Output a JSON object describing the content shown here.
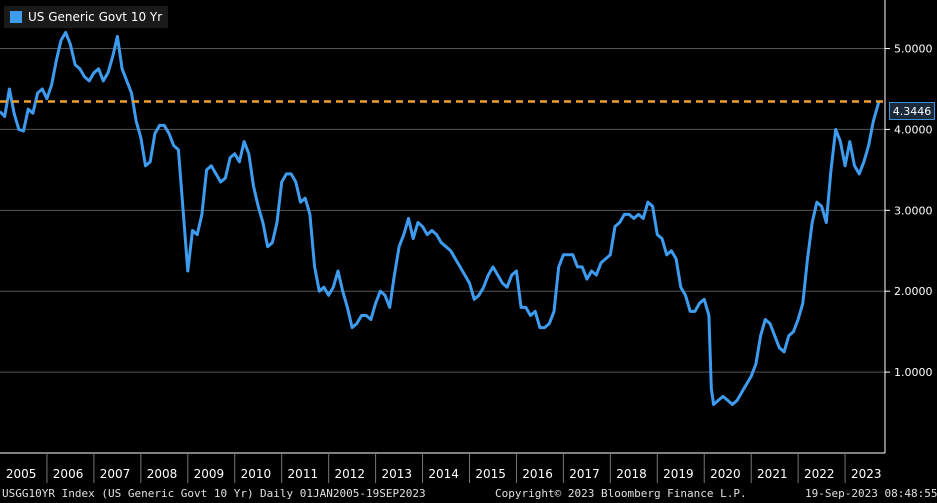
{
  "legend": {
    "label": "US Generic Govt 10 Yr",
    "color": "#3d9cf0"
  },
  "last_value_label": "4.3446",
  "footer": {
    "index_name": "USGG10YR Index (US Generic Govt 10 Yr)",
    "range": "Daily 01JAN2005-19SEP2023",
    "copyright": "Copyright© 2023 Bloomberg Finance L.P.",
    "timestamp": "19-Sep-2023 08:48:55"
  },
  "colors": {
    "background": "#000000",
    "grid": "#555555",
    "line": "#3d9cf0",
    "reference": "#f0a030",
    "axis_text": "#ffffff"
  },
  "chart_data": {
    "type": "line",
    "title": "",
    "xlabel": "",
    "ylabel": "",
    "x_tick_labels": [
      "2005",
      "2006",
      "2007",
      "2008",
      "2009",
      "2010",
      "2011",
      "2012",
      "2013",
      "2014",
      "2015",
      "2016",
      "2017",
      "2018",
      "2019",
      "2020",
      "2021",
      "2022",
      "2023"
    ],
    "y_tick_labels": [
      "1.0000",
      "2.0000",
      "3.0000",
      "4.0000",
      "5.0000"
    ],
    "y_ticks": [
      1,
      2,
      3,
      4,
      5
    ],
    "xlim": [
      2005.0,
      2023.85
    ],
    "ylim": [
      0.0,
      5.6
    ],
    "grid": true,
    "reference_line": {
      "value": 4.3446,
      "label": "4.3446"
    },
    "series": [
      {
        "name": "US Generic Govt 10 Yr",
        "x": [
          2005.0,
          2005.1,
          2005.2,
          2005.3,
          2005.4,
          2005.5,
          2005.6,
          2005.7,
          2005.8,
          2005.9,
          2006.0,
          2006.1,
          2006.2,
          2006.3,
          2006.4,
          2006.5,
          2006.6,
          2006.7,
          2006.8,
          2006.9,
          2007.0,
          2007.1,
          2007.2,
          2007.3,
          2007.4,
          2007.5,
          2007.6,
          2007.7,
          2007.8,
          2007.9,
          2008.0,
          2008.1,
          2008.2,
          2008.3,
          2008.4,
          2008.5,
          2008.6,
          2008.7,
          2008.8,
          2008.9,
          2009.0,
          2009.1,
          2009.2,
          2009.3,
          2009.4,
          2009.5,
          2009.6,
          2009.7,
          2009.8,
          2009.9,
          2010.0,
          2010.1,
          2010.2,
          2010.3,
          2010.4,
          2010.5,
          2010.6,
          2010.7,
          2010.8,
          2010.9,
          2011.0,
          2011.1,
          2011.2,
          2011.3,
          2011.4,
          2011.5,
          2011.6,
          2011.7,
          2011.8,
          2011.9,
          2012.0,
          2012.1,
          2012.2,
          2012.3,
          2012.4,
          2012.5,
          2012.6,
          2012.7,
          2012.8,
          2012.9,
          2013.0,
          2013.1,
          2013.2,
          2013.3,
          2013.4,
          2013.5,
          2013.6,
          2013.7,
          2013.8,
          2013.9,
          2014.0,
          2014.1,
          2014.2,
          2014.3,
          2014.4,
          2014.5,
          2014.6,
          2014.7,
          2014.8,
          2014.9,
          2015.0,
          2015.1,
          2015.2,
          2015.3,
          2015.4,
          2015.5,
          2015.6,
          2015.7,
          2015.8,
          2015.9,
          2016.0,
          2016.1,
          2016.2,
          2016.3,
          2016.4,
          2016.5,
          2016.6,
          2016.7,
          2016.8,
          2016.9,
          2017.0,
          2017.1,
          2017.2,
          2017.3,
          2017.4,
          2017.5,
          2017.6,
          2017.7,
          2017.8,
          2017.9,
          2018.0,
          2018.1,
          2018.2,
          2018.3,
          2018.4,
          2018.5,
          2018.6,
          2018.7,
          2018.8,
          2018.9,
          2019.0,
          2019.1,
          2019.2,
          2019.3,
          2019.4,
          2019.5,
          2019.6,
          2019.7,
          2019.8,
          2019.9,
          2020.0,
          2020.1,
          2020.15,
          2020.2,
          2020.3,
          2020.4,
          2020.5,
          2020.6,
          2020.7,
          2020.8,
          2020.9,
          2021.0,
          2021.1,
          2021.2,
          2021.3,
          2021.4,
          2021.5,
          2021.6,
          2021.7,
          2021.8,
          2021.9,
          2022.0,
          2022.1,
          2022.2,
          2022.3,
          2022.4,
          2022.5,
          2022.6,
          2022.7,
          2022.8,
          2022.9,
          2023.0,
          2023.1,
          2023.2,
          2023.3,
          2023.4,
          2023.5,
          2023.6,
          2023.72
        ],
        "values": [
          4.22,
          4.16,
          4.5,
          4.2,
          4.0,
          3.98,
          4.25,
          4.2,
          4.45,
          4.5,
          4.38,
          4.55,
          4.85,
          5.1,
          5.2,
          5.05,
          4.8,
          4.75,
          4.65,
          4.6,
          4.7,
          4.75,
          4.6,
          4.7,
          4.9,
          5.15,
          4.75,
          4.6,
          4.45,
          4.1,
          3.9,
          3.55,
          3.6,
          3.95,
          4.05,
          4.05,
          3.95,
          3.8,
          3.75,
          3.0,
          2.25,
          2.75,
          2.7,
          2.95,
          3.5,
          3.55,
          3.45,
          3.35,
          3.4,
          3.65,
          3.7,
          3.6,
          3.85,
          3.7,
          3.3,
          3.05,
          2.85,
          2.55,
          2.6,
          2.85,
          3.35,
          3.45,
          3.45,
          3.35,
          3.1,
          3.15,
          2.95,
          2.3,
          2.0,
          2.05,
          1.95,
          2.05,
          2.25,
          2.0,
          1.8,
          1.55,
          1.6,
          1.7,
          1.7,
          1.65,
          1.85,
          2.0,
          1.95,
          1.8,
          2.2,
          2.55,
          2.7,
          2.9,
          2.65,
          2.85,
          2.8,
          2.7,
          2.75,
          2.7,
          2.6,
          2.55,
          2.5,
          2.4,
          2.3,
          2.2,
          2.1,
          1.9,
          1.95,
          2.05,
          2.2,
          2.3,
          2.2,
          2.1,
          2.05,
          2.2,
          2.25,
          1.8,
          1.8,
          1.7,
          1.75,
          1.55,
          1.55,
          1.6,
          1.75,
          2.3,
          2.45,
          2.45,
          2.45,
          2.3,
          2.3,
          2.15,
          2.25,
          2.2,
          2.35,
          2.4,
          2.45,
          2.8,
          2.85,
          2.95,
          2.95,
          2.9,
          2.95,
          2.9,
          3.1,
          3.05,
          2.7,
          2.65,
          2.45,
          2.5,
          2.4,
          2.05,
          1.95,
          1.75,
          1.75,
          1.85,
          1.9,
          1.7,
          0.8,
          0.6,
          0.65,
          0.7,
          0.65,
          0.6,
          0.65,
          0.75,
          0.85,
          0.95,
          1.1,
          1.45,
          1.65,
          1.6,
          1.45,
          1.3,
          1.25,
          1.45,
          1.5,
          1.65,
          1.85,
          2.4,
          2.85,
          3.1,
          3.05,
          2.85,
          3.5,
          4.0,
          3.85,
          3.55,
          3.85,
          3.55,
          3.45,
          3.6,
          3.8,
          4.1,
          4.3446
        ]
      }
    ]
  }
}
